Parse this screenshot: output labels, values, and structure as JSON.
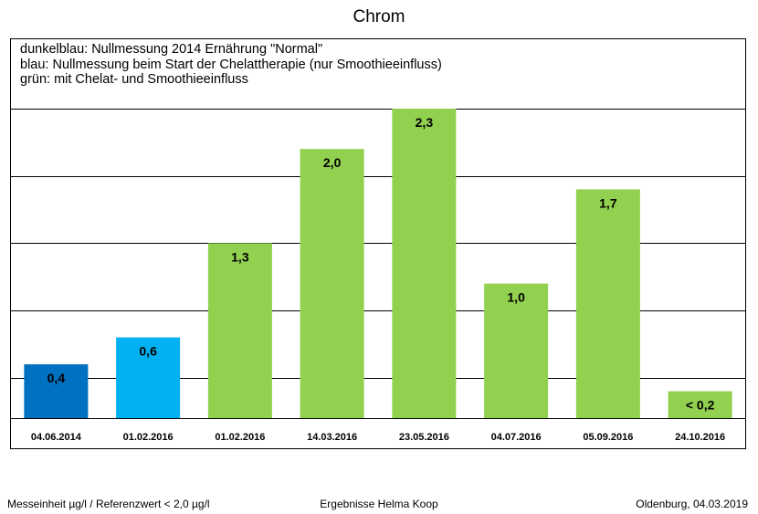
{
  "title": "Chrom",
  "legend": [
    "dunkelblau: Nullmessung 2014 Ernährung \"Normal\"",
    "blau: Nullmessung beim Start der Chelattherapie (nur Smoothieeinfluss)",
    "grün: mit Chelat- und Smoothieeinfluss"
  ],
  "colors": {
    "dunkelblau": "#0070c0",
    "blau": "#00b0f0",
    "gruen": "#92d050"
  },
  "chart_data": {
    "type": "bar",
    "title": "Chrom",
    "categories": [
      "04.06.2014",
      "01.02.2016",
      "01.02.2016",
      "14.03.2016",
      "23.05.2016",
      "04.07.2016",
      "05.09.2016",
      "24.10.2016"
    ],
    "values": [
      0.4,
      0.6,
      1.3,
      2.0,
      2.3,
      1.0,
      1.7,
      0.2
    ],
    "labels": [
      "0,4",
      "0,6",
      "1,3",
      "2,0",
      "2,3",
      "1,0",
      "1,7",
      "< 0,2"
    ],
    "color_keys": [
      "dunkelblau",
      "blau",
      "gruen",
      "gruen",
      "gruen",
      "gruen",
      "gruen",
      "gruen"
    ],
    "ylim": [
      0,
      2.3
    ],
    "gridlines": [
      0.3,
      0.8,
      1.3,
      1.8,
      2.3
    ],
    "grid": true,
    "xlabel": "",
    "ylabel": ""
  },
  "footer": {
    "left": "Messeinheit µg/l / Referenzwert < 2,0 µg/l",
    "center": "Ergebnisse Helma Koop",
    "right": "Oldenburg, 04.03.2019"
  }
}
